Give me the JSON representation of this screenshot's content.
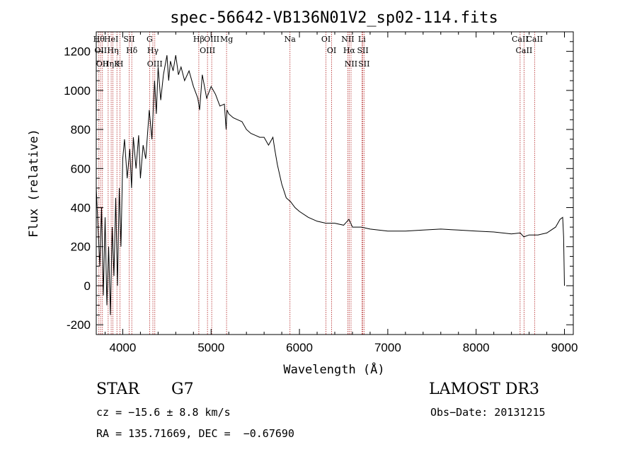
{
  "chart_data": {
    "type": "line",
    "title": "spec-56642-VB136N01V2_sp02-114.fits",
    "xlabel": "Wavelength (Å)",
    "ylabel": "Flux (relative)",
    "xlim": [
      3700,
      9100
    ],
    "ylim": [
      -250,
      1300
    ],
    "xticks": [
      4000,
      5000,
      6000,
      7000,
      8000,
      9000
    ],
    "yticks": [
      -200,
      0,
      200,
      400,
      600,
      800,
      1000,
      1200
    ],
    "grid": false,
    "series": [
      {
        "x": [
          3700,
          3720,
          3740,
          3760,
          3780,
          3800,
          3820,
          3840,
          3860,
          3880,
          3900,
          3920,
          3940,
          3960,
          3980,
          4000,
          4020,
          4050,
          4080,
          4100,
          4120,
          4150,
          4180,
          4200,
          4230,
          4260,
          4300,
          4330,
          4360,
          4380,
          4400,
          4430,
          4460,
          4500,
          4520,
          4540,
          4570,
          4600,
          4630,
          4660,
          4700,
          4750,
          4800,
          4850,
          4870,
          4900,
          4950,
          5000,
          5050,
          5100,
          5150,
          5170,
          5180,
          5200,
          5250,
          5300,
          5350,
          5400,
          5450,
          5500,
          5550,
          5600,
          5650,
          5700,
          5720,
          5750,
          5800,
          5850,
          5900,
          5950,
          6000,
          6100,
          6200,
          6300,
          6400,
          6500,
          6560,
          6600,
          6700,
          6800,
          7000,
          7200,
          7400,
          7600,
          7800,
          8000,
          8200,
          8400,
          8500,
          8540,
          8600,
          8700,
          8800,
          8900,
          8950,
          8980,
          8990,
          9000
        ],
        "y": [
          500,
          300,
          100,
          400,
          -50,
          350,
          -100,
          200,
          -150,
          300,
          50,
          450,
          0,
          500,
          200,
          650,
          750,
          550,
          700,
          500,
          760,
          600,
          770,
          550,
          720,
          650,
          900,
          750,
          1050,
          880,
          1120,
          950,
          1080,
          1180,
          1050,
          1150,
          1100,
          1180,
          1080,
          1120,
          1050,
          1100,
          1020,
          960,
          900,
          1080,
          960,
          1020,
          980,
          920,
          930,
          800,
          900,
          880,
          860,
          850,
          840,
          800,
          780,
          770,
          760,
          760,
          720,
          760,
          700,
          620,
          520,
          450,
          430,
          400,
          380,
          350,
          330,
          320,
          320,
          310,
          340,
          300,
          300,
          290,
          280,
          280,
          285,
          290,
          285,
          280,
          275,
          265,
          270,
          250,
          260,
          260,
          270,
          300,
          340,
          350,
          250,
          0
        ]
      }
    ],
    "lines": [
      {
        "x": 3730,
        "label": "Hθ"
      },
      {
        "x": 3750,
        "label": "OII"
      },
      {
        "x": 3770,
        "label": "OII"
      },
      {
        "x": 3835,
        "label": "Hη"
      },
      {
        "x": 3869,
        "label": "HeI"
      },
      {
        "x": 3889,
        "label": "Hη"
      },
      {
        "x": 3934,
        "label": "K"
      },
      {
        "x": 3969,
        "label": "H"
      },
      {
        "x": 4072,
        "label": "SII"
      },
      {
        "x": 4102,
        "label": "Hδ"
      },
      {
        "x": 4304,
        "label": "G"
      },
      {
        "x": 4341,
        "label": "Hγ"
      },
      {
        "x": 4363,
        "label": "OIII"
      },
      {
        "x": 4861,
        "label": "Hβ"
      },
      {
        "x": 4959,
        "label": "OIII"
      },
      {
        "x": 5007,
        "label": "OIII"
      },
      {
        "x": 5175,
        "label": "Mg"
      },
      {
        "x": 5893,
        "label": "Na"
      },
      {
        "x": 6300,
        "label": "OI"
      },
      {
        "x": 6364,
        "label": "OI"
      },
      {
        "x": 6548,
        "label": "NII"
      },
      {
        "x": 6563,
        "label": "Hα"
      },
      {
        "x": 6584,
        "label": "NII"
      },
      {
        "x": 6707,
        "label": "Li"
      },
      {
        "x": 6717,
        "label": "SII"
      },
      {
        "x": 6731,
        "label": "SII"
      },
      {
        "x": 8498,
        "label": "CaII"
      },
      {
        "x": 8542,
        "label": "CaII"
      },
      {
        "x": 8662,
        "label": "CaII"
      }
    ]
  },
  "info": {
    "class": "STAR",
    "subclass": "G7",
    "survey": "LAMOST DR3",
    "cz": "cz = −15.6 ± 8.8 km/s",
    "obs_date": "Obs−Date: 20131215",
    "coords": "RA = 135.71669, DEC =  −0.67690"
  }
}
